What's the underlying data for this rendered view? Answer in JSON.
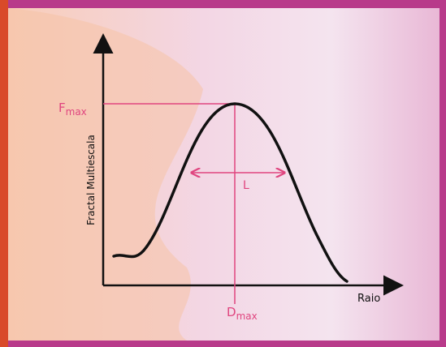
{
  "axes": {
    "y_label": "Fractal Multiescala",
    "x_label": "Raio"
  },
  "annotations": {
    "peak_value": {
      "symbol": "F",
      "subscript": "max"
    },
    "peak_position": {
      "symbol": "D",
      "subscript": "max"
    },
    "width": "L"
  }
}
